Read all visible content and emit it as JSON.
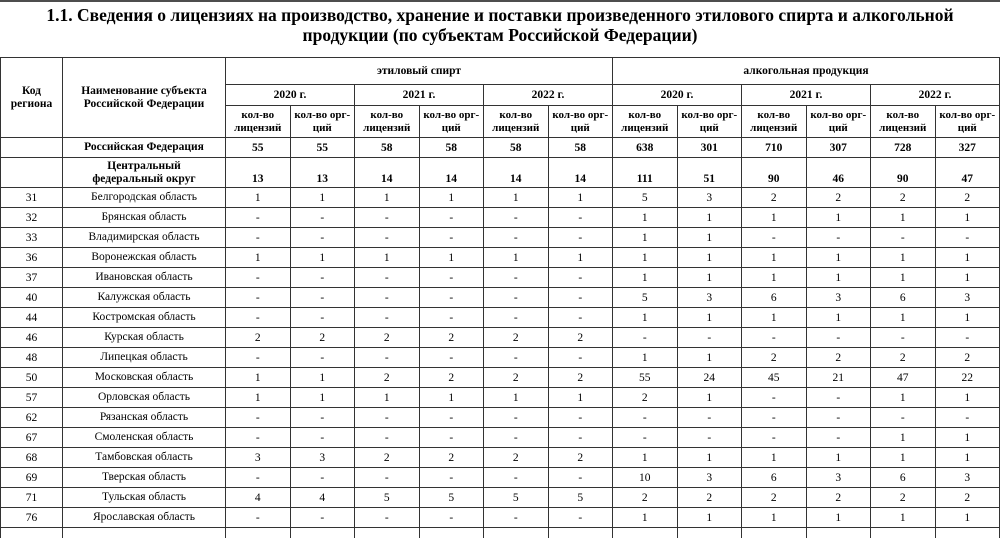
{
  "title": "1.1. Сведения о лицензиях на производство, хранение и поставки произведенного этилового спирта и алкогольной продукции (по субъектам Российской Федерации)",
  "colors": {
    "text": "#000000",
    "border": "#333333",
    "background": "#ffffff",
    "top_strip": "#4d4d4d"
  },
  "table": {
    "headers": {
      "region_code": "Код региона",
      "region_name": "Наименование субъекта Российской Федерации",
      "ethyl_section": "этиловый спирт",
      "alcohol_section": "алкогольная продукция",
      "years": [
        "2020 г.",
        "2021 г.",
        "2022 г."
      ],
      "license_count": "кол-во лицензий",
      "org_count": "кол-во орг-ций"
    },
    "rows": [
      {
        "code": "",
        "name": "Российская Федерация",
        "bold": true,
        "values": [
          "55",
          "55",
          "58",
          "58",
          "58",
          "58",
          "638",
          "301",
          "710",
          "307",
          "728",
          "327"
        ]
      },
      {
        "code": "",
        "name": "Центральный\nфедеральный округ",
        "bold": true,
        "values": [
          "13",
          "13",
          "14",
          "14",
          "14",
          "14",
          "111",
          "51",
          "90",
          "46",
          "90",
          "47"
        ]
      },
      {
        "code": "31",
        "name": "Белгородская область",
        "bold": false,
        "values": [
          "1",
          "1",
          "1",
          "1",
          "1",
          "1",
          "5",
          "3",
          "2",
          "2",
          "2",
          "2"
        ]
      },
      {
        "code": "32",
        "name": "Брянская область",
        "bold": false,
        "values": [
          "-",
          "-",
          "-",
          "-",
          "-",
          "-",
          "1",
          "1",
          "1",
          "1",
          "1",
          "1"
        ]
      },
      {
        "code": "33",
        "name": "Владимирская область",
        "bold": false,
        "values": [
          "-",
          "-",
          "-",
          "-",
          "-",
          "-",
          "1",
          "1",
          "-",
          "-",
          "-",
          "-"
        ]
      },
      {
        "code": "36",
        "name": "Воронежская область",
        "bold": false,
        "values": [
          "1",
          "1",
          "1",
          "1",
          "1",
          "1",
          "1",
          "1",
          "1",
          "1",
          "1",
          "1"
        ]
      },
      {
        "code": "37",
        "name": "Ивановская область",
        "bold": false,
        "values": [
          "-",
          "-",
          "-",
          "-",
          "-",
          "-",
          "1",
          "1",
          "1",
          "1",
          "1",
          "1"
        ]
      },
      {
        "code": "40",
        "name": "Калужская область",
        "bold": false,
        "values": [
          "-",
          "-",
          "-",
          "-",
          "-",
          "-",
          "5",
          "3",
          "6",
          "3",
          "6",
          "3"
        ]
      },
      {
        "code": "44",
        "name": "Костромская область",
        "bold": false,
        "values": [
          "-",
          "-",
          "-",
          "-",
          "-",
          "-",
          "1",
          "1",
          "1",
          "1",
          "1",
          "1"
        ]
      },
      {
        "code": "46",
        "name": "Курская область",
        "bold": false,
        "values": [
          "2",
          "2",
          "2",
          "2",
          "2",
          "2",
          "-",
          "-",
          "-",
          "-",
          "-",
          "-"
        ]
      },
      {
        "code": "48",
        "name": "Липецкая область",
        "bold": false,
        "values": [
          "-",
          "-",
          "-",
          "-",
          "-",
          "-",
          "1",
          "1",
          "2",
          "2",
          "2",
          "2"
        ]
      },
      {
        "code": "50",
        "name": "Московская область",
        "bold": false,
        "values": [
          "1",
          "1",
          "2",
          "2",
          "2",
          "2",
          "55",
          "24",
          "45",
          "21",
          "47",
          "22"
        ]
      },
      {
        "code": "57",
        "name": "Орловская область",
        "bold": false,
        "values": [
          "1",
          "1",
          "1",
          "1",
          "1",
          "1",
          "2",
          "1",
          "-",
          "-",
          "1",
          "1"
        ]
      },
      {
        "code": "62",
        "name": "Рязанская область",
        "bold": false,
        "values": [
          "-",
          "-",
          "-",
          "-",
          "-",
          "-",
          "-",
          "-",
          "-",
          "-",
          "-",
          "-"
        ]
      },
      {
        "code": "67",
        "name": "Смоленская область",
        "bold": false,
        "values": [
          "-",
          "-",
          "-",
          "-",
          "-",
          "-",
          "-",
          "-",
          "-",
          "-",
          "1",
          "1"
        ]
      },
      {
        "code": "68",
        "name": "Тамбовская область",
        "bold": false,
        "values": [
          "3",
          "3",
          "2",
          "2",
          "2",
          "2",
          "1",
          "1",
          "1",
          "1",
          "1",
          "1"
        ]
      },
      {
        "code": "69",
        "name": "Тверская область",
        "bold": false,
        "values": [
          "-",
          "-",
          "-",
          "-",
          "-",
          "-",
          "10",
          "3",
          "6",
          "3",
          "6",
          "3"
        ]
      },
      {
        "code": "71",
        "name": "Тульская область",
        "bold": false,
        "values": [
          "4",
          "4",
          "5",
          "5",
          "5",
          "5",
          "2",
          "2",
          "2",
          "2",
          "2",
          "2"
        ]
      },
      {
        "code": "76",
        "name": "Ярославская область",
        "bold": false,
        "values": [
          "-",
          "-",
          "-",
          "-",
          "-",
          "-",
          "1",
          "1",
          "1",
          "1",
          "1",
          "1"
        ]
      }
    ]
  }
}
